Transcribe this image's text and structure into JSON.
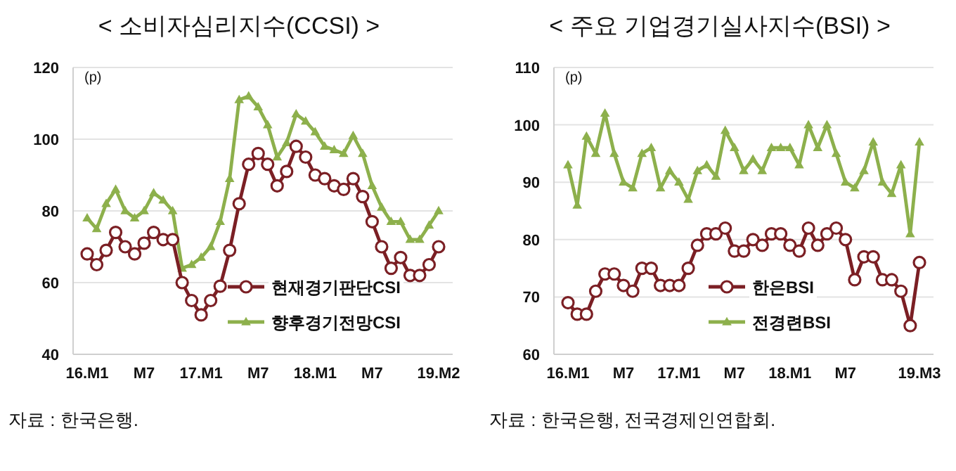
{
  "chart_data": [
    {
      "type": "line",
      "title": "< 소비자심리지수(CCSI) >",
      "ylabel": "(p)",
      "categories": [
        "16.M1",
        null,
        null,
        null,
        null,
        null,
        "M7",
        null,
        null,
        null,
        null,
        null,
        "17.M1",
        null,
        null,
        null,
        null,
        null,
        "M7",
        null,
        null,
        null,
        null,
        null,
        "18.M1",
        null,
        null,
        null,
        null,
        null,
        "M7",
        null,
        null,
        null,
        null,
        null,
        null,
        "19.M2"
      ],
      "series": [
        {
          "name": "현재경기판단CSI",
          "color": "#7b1f24",
          "marker": "circle",
          "values": [
            68,
            65,
            69,
            74,
            70,
            68,
            71,
            74,
            72,
            72,
            60,
            55,
            51,
            55,
            59,
            69,
            82,
            93,
            96,
            93,
            87,
            91,
            98,
            95,
            90,
            89,
            87,
            86,
            89,
            84,
            77,
            70,
            64,
            67,
            62,
            62,
            65,
            70
          ]
        },
        {
          "name": "향후경기전망CSI",
          "color": "#8db04c",
          "marker": "triangle",
          "values": [
            78,
            75,
            82,
            86,
            80,
            78,
            80,
            85,
            83,
            80,
            64,
            65,
            67,
            70,
            77,
            89,
            111,
            112,
            109,
            104,
            95,
            99,
            107,
            105,
            102,
            98,
            97,
            96,
            101,
            96,
            87,
            81,
            77,
            77,
            72,
            72,
            76,
            80
          ]
        }
      ],
      "ylim": [
        40,
        120
      ],
      "yticks": [
        40,
        60,
        80,
        100,
        120
      ],
      "grid": "y",
      "legend": "bottom right",
      "annotations": [
        "자료 : 한국은행."
      ]
    },
    {
      "type": "line",
      "title": "< 주요 기업경기실사지수(BSI) >",
      "ylabel": "(p)",
      "categories": [
        "16.M1",
        null,
        null,
        null,
        null,
        null,
        "M7",
        null,
        null,
        null,
        null,
        null,
        "17.M1",
        null,
        null,
        null,
        null,
        null,
        "M7",
        null,
        null,
        null,
        null,
        null,
        "18.M1",
        null,
        null,
        null,
        null,
        null,
        "M7",
        null,
        null,
        null,
        null,
        null,
        null,
        null,
        "19.M3"
      ],
      "series": [
        {
          "name": "한은BSI",
          "color": "#7b1f24",
          "marker": "circle",
          "values": [
            69,
            67,
            67,
            71,
            74,
            74,
            72,
            71,
            75,
            75,
            72,
            72,
            72,
            75,
            79,
            81,
            81,
            82,
            78,
            78,
            80,
            79,
            81,
            81,
            79,
            78,
            82,
            79,
            81,
            82,
            80,
            73,
            77,
            77,
            73,
            73,
            71,
            65,
            76
          ]
        },
        {
          "name": "전경련BSI",
          "color": "#8db04c",
          "marker": "triangle",
          "values": [
            93,
            86,
            98,
            95,
            102,
            95,
            90,
            89,
            95,
            96,
            89,
            92,
            90,
            87,
            92,
            93,
            91,
            99,
            96,
            92,
            94,
            92,
            96,
            96,
            96,
            93,
            100,
            96,
            100,
            95,
            90,
            89,
            92,
            97,
            90,
            88,
            93,
            81,
            97
          ]
        }
      ],
      "ylim": [
        60,
        110
      ],
      "yticks": [
        60,
        70,
        80,
        90,
        100,
        110
      ],
      "grid": "y",
      "legend": "bottom right",
      "annotations": [
        "자료 : 한국은행, 전국경제인연합회."
      ]
    }
  ]
}
